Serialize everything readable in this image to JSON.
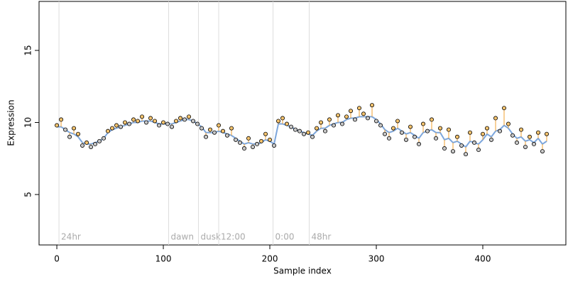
{
  "chart_data": {
    "type": "scatter",
    "xlabel": "Sample index",
    "ylabel": "Expression",
    "x": [
      0,
      4,
      8,
      12,
      16,
      20,
      24,
      28,
      32,
      36,
      40,
      44,
      48,
      52,
      56,
      60,
      64,
      68,
      72,
      76,
      80,
      84,
      88,
      92,
      96,
      100,
      104,
      108,
      112,
      116,
      120,
      124,
      128,
      132,
      136,
      140,
      144,
      148,
      152,
      156,
      160,
      164,
      168,
      172,
      176,
      180,
      184,
      188,
      192,
      196,
      200,
      204,
      208,
      212,
      216,
      220,
      224,
      228,
      232,
      236,
      240,
      244,
      248,
      252,
      256,
      260,
      264,
      268,
      272,
      276,
      280,
      284,
      288,
      292,
      296,
      300,
      304,
      308,
      312,
      316,
      320,
      324,
      328,
      332,
      336,
      340,
      344,
      348,
      352,
      356,
      360,
      364,
      368,
      372,
      376,
      380,
      384,
      388,
      392,
      396,
      400,
      404,
      408,
      412,
      416,
      420,
      424,
      428,
      432,
      436,
      440,
      444,
      448,
      452,
      456,
      460
    ],
    "series": [
      {
        "color": "#7ca6dc",
        "values": [
          9.7,
          9.7,
          9.5,
          9.3,
          9.2,
          9.0,
          8.6,
          8.5,
          8.5,
          8.6,
          8.7,
          8.9,
          9.3,
          9.5,
          9.6,
          9.7,
          9.8,
          9.9,
          10.0,
          10.0,
          10.1,
          10.1,
          10.1,
          10.0,
          9.9,
          9.9,
          9.9,
          9.9,
          10.0,
          10.1,
          10.2,
          10.2,
          10.1,
          9.9,
          9.7,
          9.3,
          9.3,
          9.3,
          9.4,
          9.3,
          9.2,
          9.1,
          8.9,
          8.7,
          8.5,
          8.6,
          8.5,
          8.5,
          8.6,
          8.8,
          8.7,
          8.5,
          9.9,
          9.9,
          9.8,
          9.7,
          9.5,
          9.4,
          9.3,
          9.2,
          9.1,
          9.4,
          9.6,
          9.6,
          9.8,
          9.9,
          10.0,
          10.0,
          10.2,
          10.3,
          10.3,
          10.4,
          10.4,
          10.4,
          10.4,
          10.2,
          9.9,
          9.5,
          9.3,
          9.4,
          9.6,
          9.4,
          9.2,
          9.3,
          9.1,
          8.9,
          9.3,
          9.4,
          9.5,
          9.3,
          9.3,
          8.8,
          8.9,
          8.6,
          8.7,
          8.5,
          8.3,
          8.7,
          8.6,
          8.5,
          8.8,
          9.2,
          9.0,
          9.4,
          9.5,
          9.8,
          9.6,
          9.2,
          8.9,
          9.0,
          8.7,
          8.8,
          8.6,
          8.9,
          8.5,
          8.7
        ]
      },
      {
        "color": "#f0a030",
        "values": [
          9.8,
          10.2,
          9.5,
          9.0,
          9.6,
          9.2,
          8.4,
          8.6,
          8.3,
          8.5,
          8.7,
          8.9,
          9.4,
          9.6,
          9.8,
          9.7,
          10.0,
          9.9,
          10.2,
          10.1,
          10.4,
          10.0,
          10.3,
          10.1,
          9.8,
          10.0,
          9.9,
          9.7,
          10.1,
          10.3,
          10.2,
          10.4,
          10.1,
          9.9,
          9.6,
          9.0,
          9.5,
          9.3,
          9.8,
          9.4,
          9.1,
          9.6,
          8.8,
          8.6,
          8.2,
          8.9,
          8.3,
          8.5,
          8.7,
          9.2,
          8.8,
          8.4,
          10.1,
          10.3,
          9.9,
          9.7,
          9.5,
          9.4,
          9.2,
          9.3,
          9.0,
          9.6,
          10.0,
          9.4,
          10.2,
          9.8,
          10.5,
          9.9,
          10.4,
          10.8,
          10.2,
          11.0,
          10.6,
          10.3,
          11.2,
          10.1,
          9.8,
          9.2,
          8.9,
          9.6,
          10.1,
          9.3,
          8.8,
          9.7,
          9.0,
          8.5,
          9.9,
          9.4,
          10.2,
          8.9,
          9.6,
          8.2,
          9.5,
          8.0,
          9.0,
          8.4,
          7.8,
          9.3,
          8.6,
          8.1,
          9.2,
          9.6,
          8.8,
          10.3,
          9.4,
          11.0,
          9.9,
          9.1,
          8.6,
          9.5,
          8.3,
          9.0,
          8.5,
          9.3,
          8.0,
          9.2
        ]
      }
    ],
    "annotations": [
      {
        "x": 2,
        "label": "24hr"
      },
      {
        "x": 105,
        "label": "dawn"
      },
      {
        "x": 133,
        "label": "dusk"
      },
      {
        "x": 152,
        "label": "12:00"
      },
      {
        "x": 203,
        "label": "0:00"
      },
      {
        "x": 237,
        "label": "48hr"
      }
    ],
    "xlim": [
      -16.7,
      478
    ],
    "ylim": [
      1.5,
      18.4
    ],
    "xticks": [
      0,
      100,
      200,
      300,
      400
    ],
    "yticks": [
      5,
      10,
      15
    ]
  }
}
